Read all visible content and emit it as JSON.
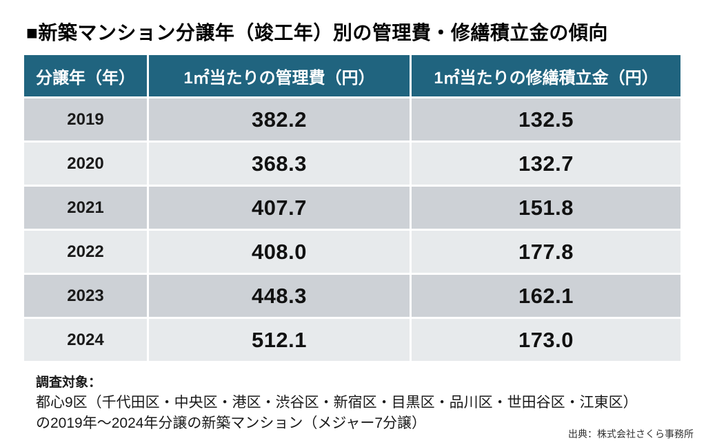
{
  "title": "■新築マンション分譲年（竣工年）別の管理費・修繕積立金の傾向",
  "table": {
    "headers": [
      "分譲年（年）",
      "1㎡当たりの管理費（円）",
      "1㎡当たりの修繕積立金（円）"
    ],
    "rows": [
      {
        "year": "2019",
        "management_fee": "382.2",
        "repair_reserve": "132.5"
      },
      {
        "year": "2020",
        "management_fee": "368.3",
        "repair_reserve": "132.7"
      },
      {
        "year": "2021",
        "management_fee": "407.7",
        "repair_reserve": "151.8"
      },
      {
        "year": "2022",
        "management_fee": "408.0",
        "repair_reserve": "177.8"
      },
      {
        "year": "2023",
        "management_fee": "448.3",
        "repair_reserve": "162.1"
      },
      {
        "year": "2024",
        "management_fee": "512.1",
        "repair_reserve": "173.0"
      }
    ]
  },
  "footer": {
    "label": "調査対象：",
    "line1": "都心9区（千代田区・中央区・港区・渋谷区・新宿区・目黒区・品川区・世田谷区・江東区）",
    "line2": "の2019年～2024年分譲の新築マンション（メジャー7分譲）",
    "source": "出典：株式会社さくら事務所"
  },
  "colors": {
    "header_bg": "#20647F",
    "row_dark": "#CDD1D6",
    "row_light": "#E7EAEC",
    "background": "#FFFFFF"
  },
  "chart_data": {
    "type": "table",
    "title": "新築マンション分譲年（竣工年）別の管理費・修繕積立金の傾向",
    "columns": [
      "分譲年（年）",
      "1㎡当たりの管理費（円）",
      "1㎡当たりの修繕積立金（円）"
    ],
    "categories": [
      2019,
      2020,
      2021,
      2022,
      2023,
      2024
    ],
    "series": [
      {
        "name": "1㎡当たりの管理費（円）",
        "values": [
          382.2,
          368.3,
          407.7,
          408.0,
          448.3,
          512.1
        ]
      },
      {
        "name": "1㎡当たりの修繕積立金（円）",
        "values": [
          132.5,
          132.7,
          151.8,
          177.8,
          162.1,
          173.0
        ]
      }
    ]
  }
}
